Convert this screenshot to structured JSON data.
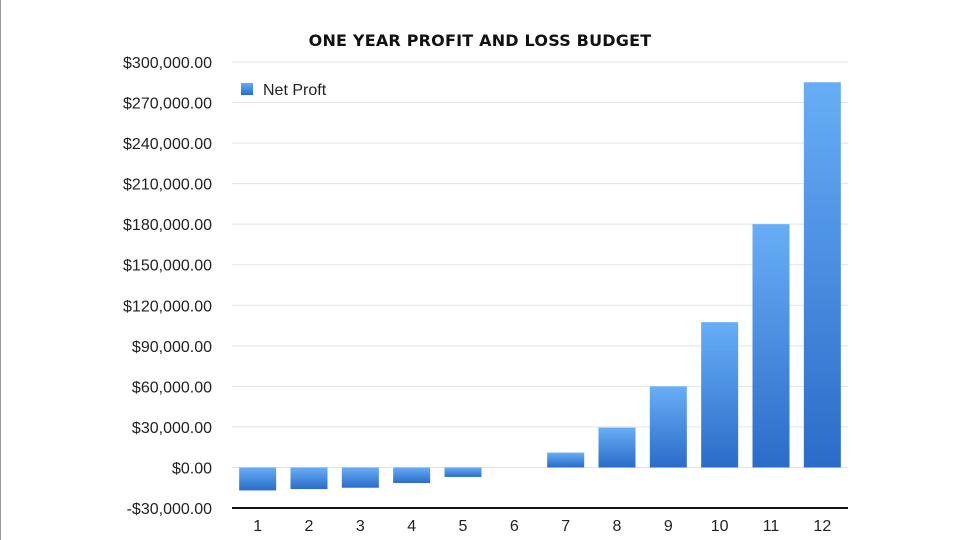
{
  "chart_data": {
    "type": "bar",
    "title": "ONE YEAR PROFIT AND LOSS BUDGET",
    "xlabel": "",
    "ylabel": "",
    "categories": [
      "1",
      "2",
      "3",
      "4",
      "5",
      "6",
      "7",
      "8",
      "9",
      "10",
      "11",
      "12"
    ],
    "series": [
      {
        "name": "Net Proft",
        "values": [
          -17000,
          -16000,
          -15000,
          -11500,
          -7000,
          0,
          11000,
          29500,
          60000,
          107500,
          180000,
          285000
        ]
      }
    ],
    "ylim": [
      -30000,
      300000
    ],
    "y_ticks": [
      -30000,
      0,
      30000,
      60000,
      90000,
      120000,
      150000,
      180000,
      210000,
      240000,
      270000,
      300000
    ],
    "y_tick_labels": [
      "-$30,000.00",
      "$0.00",
      "$30,000.00",
      "$60,000.00",
      "$90,000.00",
      "$120,000.00",
      "$150,000.00",
      "$180,000.00",
      "$210,000.00",
      "$240,000.00",
      "$270,000.00",
      "$300,000.00"
    ],
    "grid": true,
    "legend_position": "top-left",
    "colors": {
      "bar_top": "#67aef6",
      "bar_bottom": "#2a6cc9",
      "grid": "#e3e3e3",
      "axis": "#111111"
    }
  }
}
